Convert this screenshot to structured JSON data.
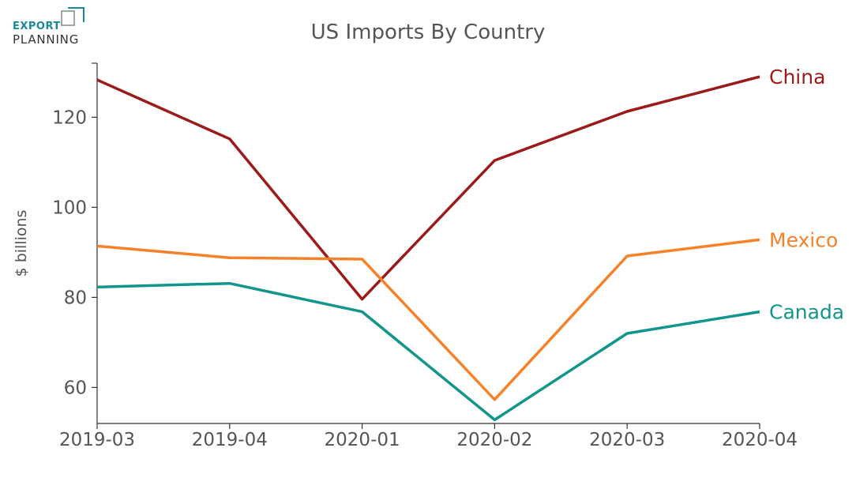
{
  "logo": {
    "line1": "EXPORT",
    "line2": "PLANNING",
    "accent": "#1a8a9a"
  },
  "chart_data": {
    "type": "line",
    "title": "US Imports By Country",
    "xlabel": "",
    "ylabel": "$ billions",
    "categories": [
      "2019-03",
      "2019-04",
      "2020-01",
      "2020-02",
      "2020-03",
      "2020-04"
    ],
    "ylim": [
      52,
      132
    ],
    "yticks": [
      60,
      80,
      100,
      120
    ],
    "grid": false,
    "series": [
      {
        "name": "China",
        "color": "#9b1b1b",
        "values": [
          128.3,
          115.2,
          79.6,
          110.4,
          121.3,
          129.0
        ]
      },
      {
        "name": "Mexico",
        "color": "#f5822a",
        "values": [
          91.4,
          88.8,
          88.5,
          57.3,
          89.2,
          92.8
        ]
      },
      {
        "name": "Canada",
        "color": "#12958a",
        "values": [
          82.3,
          83.1,
          76.8,
          52.8,
          72.0,
          76.8
        ]
      }
    ]
  }
}
